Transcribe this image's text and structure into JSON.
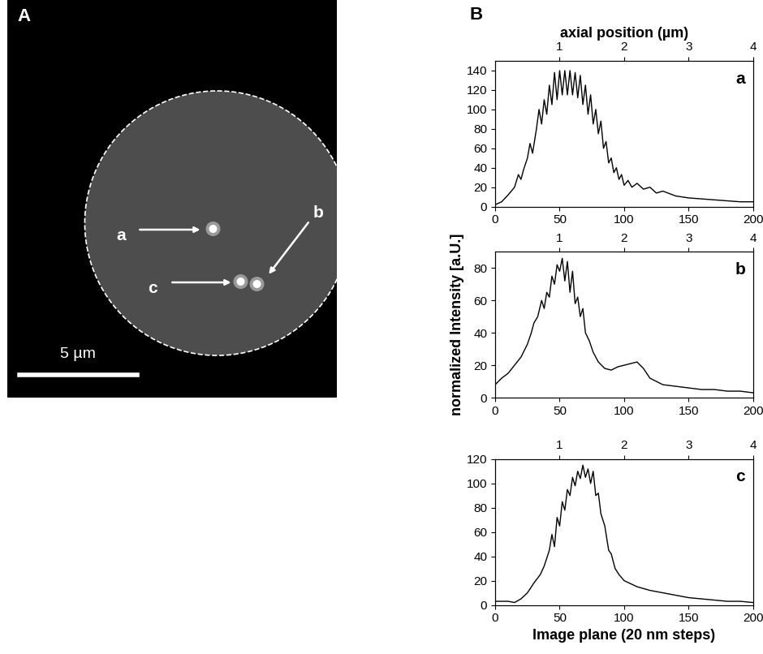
{
  "image_panel": {
    "label": "A",
    "arrows": [
      "a",
      "b",
      "c"
    ],
    "scale_bar": "5 µm"
  },
  "panel_label": "B",
  "chart_data": [
    {
      "type": "line",
      "annotation": "a",
      "color": "#000000",
      "x": [
        0,
        5,
        10,
        15,
        18,
        20,
        22,
        25,
        27,
        29,
        32,
        34,
        36,
        38,
        40,
        42,
        44,
        46,
        48,
        50,
        52,
        54,
        56,
        58,
        60,
        62,
        64,
        66,
        68,
        70,
        72,
        74,
        76,
        78,
        80,
        82,
        84,
        86,
        88,
        90,
        92,
        94,
        96,
        98,
        100,
        103,
        106,
        110,
        115,
        120,
        125,
        130,
        140,
        150,
        160,
        170,
        180,
        190,
        200
      ],
      "values": [
        2,
        5,
        12,
        20,
        33,
        28,
        38,
        50,
        65,
        55,
        80,
        100,
        85,
        110,
        95,
        125,
        105,
        138,
        110,
        140,
        115,
        140,
        115,
        140,
        115,
        138,
        112,
        135,
        105,
        125,
        95,
        115,
        85,
        100,
        75,
        88,
        60,
        67,
        45,
        50,
        35,
        40,
        28,
        33,
        22,
        27,
        20,
        24,
        18,
        20,
        14,
        16,
        11,
        9,
        8,
        7,
        6,
        5,
        5
      ],
      "xlim": [
        0,
        200
      ],
      "xticks": [
        0,
        50,
        100,
        150,
        200
      ],
      "ylim": [
        0,
        150
      ],
      "yticks": [
        0,
        20,
        40,
        60,
        80,
        100,
        120,
        140
      ],
      "x2lim": [
        0,
        4
      ],
      "x2ticks": [
        1,
        2,
        3,
        4
      ],
      "x2label": "axial position (µm)"
    },
    {
      "type": "line",
      "annotation": "b",
      "color": "#000000",
      "x": [
        0,
        5,
        10,
        15,
        20,
        25,
        28,
        30,
        33,
        36,
        38,
        40,
        42,
        44,
        46,
        48,
        50,
        52,
        54,
        56,
        58,
        60,
        62,
        64,
        66,
        68,
        70,
        73,
        76,
        80,
        85,
        90,
        95,
        100,
        105,
        110,
        115,
        120,
        130,
        140,
        150,
        160,
        170,
        180,
        190,
        200
      ],
      "values": [
        8,
        12,
        15,
        20,
        25,
        33,
        40,
        46,
        50,
        60,
        55,
        65,
        62,
        75,
        70,
        82,
        78,
        86,
        72,
        84,
        65,
        78,
        58,
        62,
        50,
        55,
        40,
        35,
        28,
        22,
        18,
        17,
        19,
        20,
        21,
        22,
        18,
        12,
        8,
        7,
        6,
        5,
        5,
        4,
        4,
        3
      ],
      "xlim": [
        0,
        200
      ],
      "xticks": [
        0,
        50,
        100,
        150,
        200
      ],
      "ylim": [
        0,
        90
      ],
      "yticks": [
        0,
        20,
        40,
        60,
        80
      ],
      "x2lim": [
        0,
        4
      ],
      "x2ticks": [
        1,
        2,
        3,
        4
      ],
      "ylabel": "normalized Intensity [a.U.]"
    },
    {
      "type": "line",
      "annotation": "c",
      "color": "#000000",
      "x": [
        0,
        10,
        15,
        20,
        25,
        30,
        35,
        38,
        42,
        44,
        46,
        48,
        50,
        52,
        54,
        56,
        58,
        60,
        62,
        64,
        66,
        68,
        70,
        72,
        74,
        76,
        78,
        80,
        82,
        85,
        88,
        90,
        93,
        96,
        100,
        110,
        120,
        130,
        140,
        150,
        160,
        170,
        180,
        190,
        200
      ],
      "values": [
        3,
        3,
        2,
        5,
        10,
        18,
        25,
        32,
        45,
        58,
        48,
        72,
        65,
        85,
        78,
        95,
        90,
        105,
        98,
        110,
        104,
        115,
        105,
        112,
        100,
        110,
        90,
        92,
        75,
        65,
        45,
        42,
        30,
        25,
        20,
        15,
        12,
        10,
        8,
        6,
        5,
        4,
        3,
        3,
        2
      ],
      "xlim": [
        0,
        200
      ],
      "xticks": [
        0,
        50,
        100,
        150,
        200
      ],
      "ylim": [
        0,
        120
      ],
      "yticks": [
        0,
        20,
        40,
        60,
        80,
        100,
        120
      ],
      "x2lim": [
        0,
        4
      ],
      "x2ticks": [
        1,
        2,
        3,
        4
      ],
      "xlabel": "Image plane (20 nm steps)"
    }
  ]
}
